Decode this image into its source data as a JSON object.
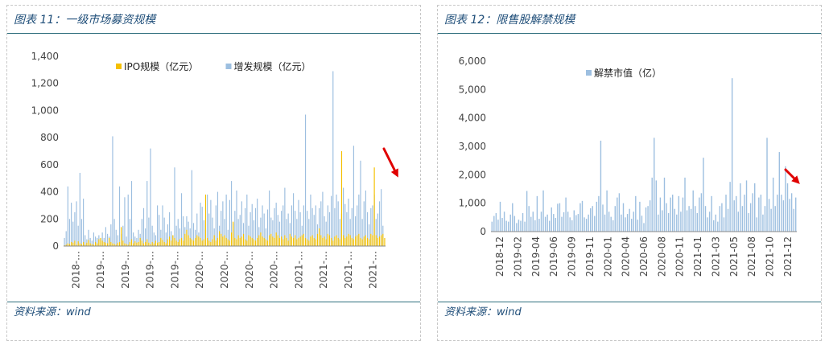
{
  "panels": {
    "left": {
      "title": "图表 11：一级市场募资规模",
      "source": "资料来源：wind"
    },
    "right": {
      "title": "图表 12：限售股解禁规模",
      "source": "资料来源：wind"
    }
  },
  "chart_data": [
    {
      "type": "bar",
      "title": "",
      "xlabel": "",
      "ylabel": "",
      "ylim": [
        0,
        1400
      ],
      "yticks": [
        0,
        200,
        400,
        600,
        800,
        1000,
        1200,
        1400
      ],
      "ytick_labels": [
        "0",
        "200",
        "400",
        "600",
        "800",
        "1,000",
        "1,200",
        "1,400"
      ],
      "xtick_labels": [
        "2018-…",
        "2019-…",
        "2019-…",
        "2019-…",
        "2019-…",
        "2020-…",
        "2020-…",
        "2020-…",
        "2020-…",
        "2021-…",
        "2021-…",
        "2021-…",
        "2021-…"
      ],
      "legend_position": "top-center",
      "grid": false,
      "series": [
        {
          "name": "IPO规模（亿元）",
          "color": "#f5c000",
          "values": [
            5,
            10,
            20,
            15,
            30,
            25,
            40,
            10,
            35,
            20,
            15,
            30,
            10,
            25,
            45,
            20,
            15,
            10,
            30,
            20,
            50,
            60,
            40,
            30,
            25,
            20,
            60,
            30,
            20,
            15,
            10,
            25,
            30,
            140,
            40,
            20,
            15,
            10,
            30,
            50,
            20,
            35,
            25,
            30,
            60,
            40,
            20,
            30,
            50,
            25,
            15,
            30,
            20,
            40,
            25,
            30,
            60,
            45,
            30,
            20,
            50,
            70,
            40,
            80,
            60,
            40,
            30,
            50,
            60,
            40,
            90,
            120,
            80,
            60,
            50,
            40,
            60,
            80,
            70,
            60,
            40,
            50,
            380,
            60,
            40,
            30,
            50,
            80,
            40,
            60,
            110,
            90,
            70,
            80,
            60,
            50,
            40,
            100,
            180,
            60,
            50,
            80,
            60,
            70,
            90,
            50,
            40,
            80,
            70,
            60,
            50,
            40,
            60,
            80,
            100,
            70,
            60,
            50,
            40,
            80,
            90,
            70,
            60,
            100,
            80,
            60,
            70,
            50,
            80,
            60,
            40,
            90,
            70,
            60,
            80,
            50,
            60,
            70,
            80,
            90,
            60,
            50,
            40,
            70,
            80,
            60,
            50,
            90,
            130,
            80,
            60,
            70,
            50,
            90,
            80,
            60,
            40,
            70,
            80,
            60,
            50,
            700,
            80,
            60,
            70,
            90,
            80,
            60,
            50,
            70,
            80,
            90,
            60,
            50,
            70,
            80,
            60,
            50,
            90,
            80,
            580,
            80,
            60,
            70,
            80,
            90,
            60
          ]
        },
        {
          "name": "增发规模（亿元）",
          "color": "#9dbfe0",
          "values": [
            60,
            110,
            440,
            200,
            320,
            180,
            250,
            330,
            150,
            540,
            200,
            350,
            80,
            50,
            120,
            60,
            40,
            100,
            70,
            60,
            80,
            50,
            100,
            60,
            140,
            90,
            70,
            160,
            810,
            200,
            120,
            80,
            440,
            90,
            150,
            360,
            70,
            380,
            200,
            480,
            100,
            70,
            60,
            120,
            90,
            200,
            280,
            130,
            480,
            210,
            720,
            150,
            100,
            80,
            300,
            230,
            120,
            300,
            210,
            100,
            160,
            250,
            110,
            80,
            580,
            150,
            200,
            130,
            390,
            220,
            140,
            220,
            180,
            130,
            560,
            170,
            120,
            240,
            100,
            320,
            290,
            190,
            120,
            380,
            240,
            340,
            210,
            130,
            300,
            400,
            150,
            260,
            330,
            200,
            380,
            120,
            340,
            480,
            170,
            260,
            410,
            200,
            230,
            330,
            170,
            280,
            380,
            150,
            250,
            310,
            190,
            280,
            350,
            140,
            210,
            300,
            240,
            130,
            270,
            410,
            210,
            190,
            280,
            320,
            230,
            180,
            260,
            300,
            430,
            200,
            240,
            170,
            300,
            390,
            260,
            200,
            340,
            250,
            150,
            300,
            970,
            260,
            200,
            380,
            280,
            230,
            300,
            160,
            280,
            330,
            400,
            220,
            180,
            300,
            250,
            370,
            1290,
            280,
            380,
            330,
            200,
            240,
            430,
            310,
            250,
            350,
            200,
            280,
            740,
            220,
            300,
            380,
            630,
            200,
            330,
            410,
            250,
            160,
            280,
            300,
            380,
            200,
            240,
            330,
            420,
            150
          ]
        }
      ]
    },
    {
      "type": "bar",
      "title": "",
      "xlabel": "",
      "ylabel": "",
      "ylim": [
        0,
        6000
      ],
      "yticks": [
        0,
        1000,
        2000,
        3000,
        4000,
        5000,
        6000
      ],
      "ytick_labels": [
        "0",
        "1,000",
        "2,000",
        "3,000",
        "4,000",
        "5,000",
        "6,000"
      ],
      "xtick_labels": [
        "2018-12",
        "2019-02",
        "2019-04",
        "2019-06",
        "2019-09",
        "2019-11",
        "2020-01",
        "2020-04",
        "2020-06",
        "2020-08",
        "2020-11",
        "2021-01",
        "2021-03",
        "2021-05",
        "2021-08",
        "2021-10",
        "2021-12"
      ],
      "legend_position": "top-center",
      "grid": false,
      "series": [
        {
          "name": "解禁市值（亿）",
          "color": "#9dbfe0",
          "values": [
            350,
            550,
            650,
            420,
            1050,
            480,
            700,
            380,
            350,
            600,
            1000,
            550,
            300,
            420,
            380,
            650,
            350,
            1430,
            900,
            520,
            700,
            400,
            1250,
            450,
            700,
            1450,
            520,
            600,
            380,
            850,
            620,
            480,
            980,
            1000,
            520,
            680,
            1200,
            700,
            500,
            400,
            750,
            580,
            620,
            1000,
            1080,
            500,
            450,
            600,
            820,
            900,
            550,
            1050,
            1250,
            3200,
            950,
            600,
            1450,
            700,
            520,
            400,
            900,
            1200,
            1350,
            600,
            1000,
            500,
            620,
            800,
            450,
            700,
            1250,
            420,
            1050,
            560,
            300,
            850,
            900,
            1100,
            1900,
            3300,
            1800,
            600,
            1200,
            750,
            1900,
            1000,
            650,
            1200,
            1300,
            800,
            600,
            1250,
            700,
            1200,
            1900,
            750,
            900,
            800,
            1450,
            900,
            650,
            1200,
            1350,
            2600,
            900,
            500,
            700,
            1250,
            400,
            600,
            350,
            900,
            1000,
            500,
            1300,
            800,
            1750,
            5400,
            1100,
            1250,
            700,
            1700,
            900,
            1300,
            1800,
            650,
            1000,
            1350,
            1700,
            500,
            1200,
            1300,
            600,
            900,
            3300,
            1150,
            800,
            1900,
            900,
            1300,
            2800,
            1300,
            1100,
            2300,
            1700,
            1150,
            1350,
            800,
            1200
          ]
        }
      ]
    }
  ]
}
